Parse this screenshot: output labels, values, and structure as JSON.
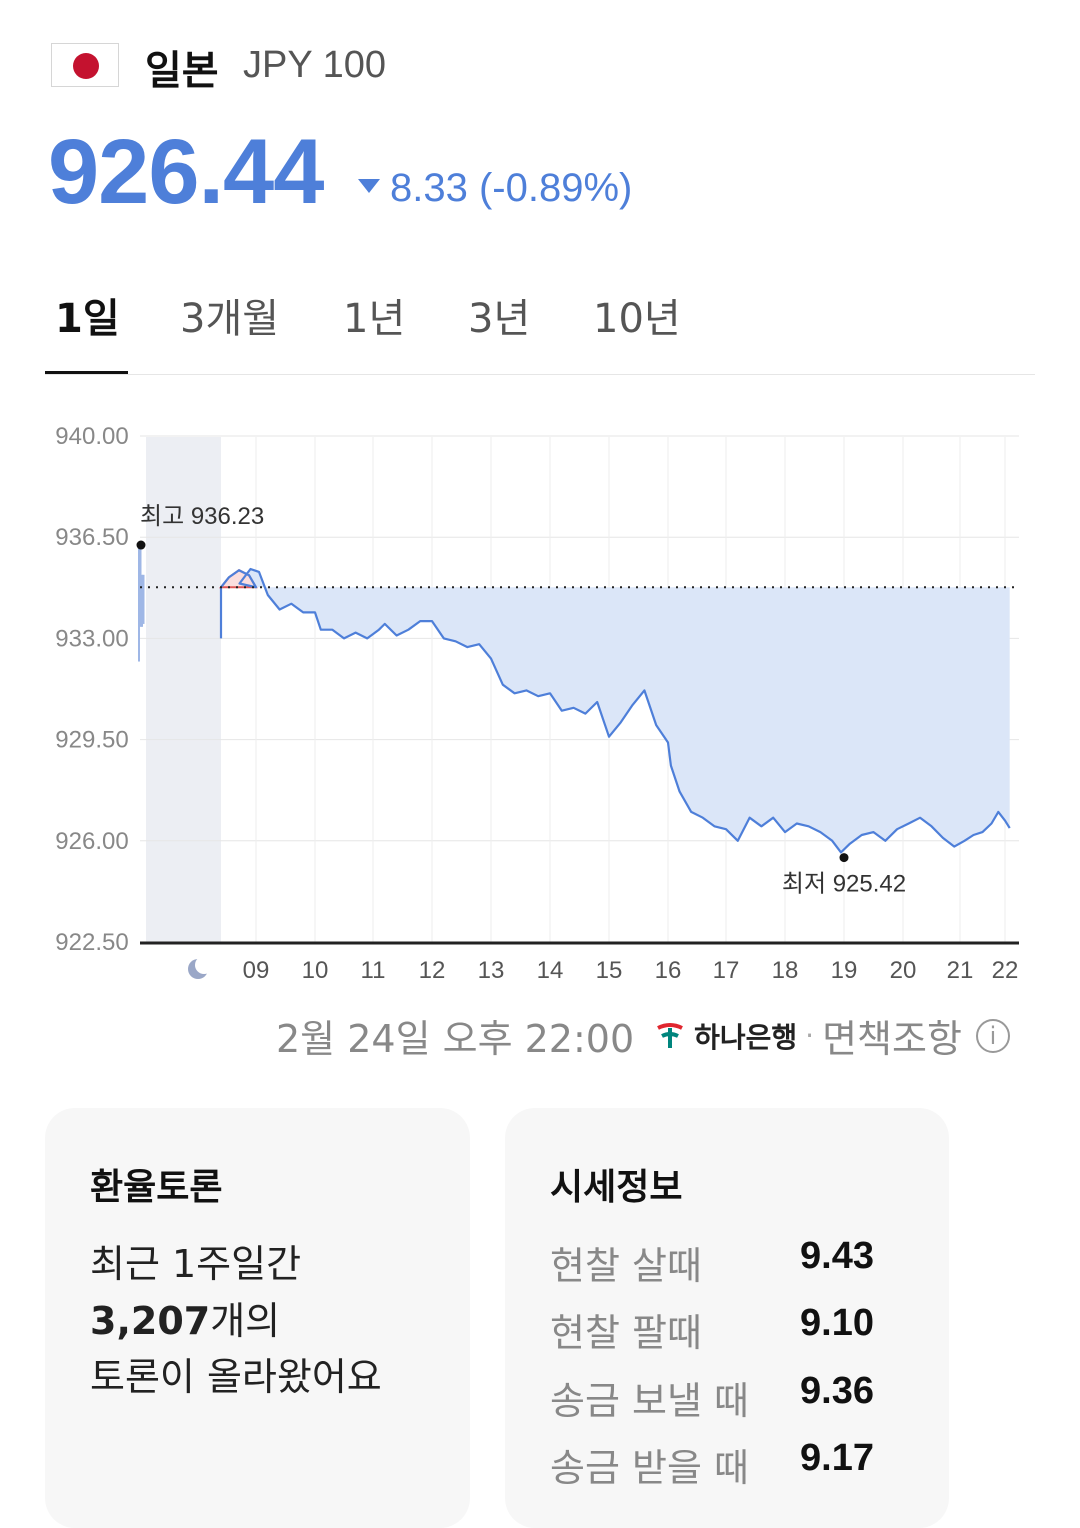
{
  "header": {
    "country": "일본",
    "currency_code": "JPY 100",
    "price": "926.44",
    "change": "8.33 (-0.89%)",
    "change_direction": "down",
    "accent_color": "#4e7fd9",
    "flag_icon": "japan-flag-icon"
  },
  "tabs": [
    {
      "label": "1일",
      "active": true
    },
    {
      "label": "3개월",
      "active": false
    },
    {
      "label": "1년",
      "active": false
    },
    {
      "label": "3년",
      "active": false
    },
    {
      "label": "10년",
      "active": false
    }
  ],
  "chart_data": {
    "type": "area",
    "y_ticks": [
      "940.00",
      "936.50",
      "933.00",
      "929.50",
      "926.00",
      "922.50"
    ],
    "ylim": [
      922.5,
      940.0
    ],
    "x_ticks": [
      "09",
      "10",
      "11",
      "12",
      "13",
      "14",
      "15",
      "16",
      "17",
      "18",
      "19",
      "20",
      "21",
      "22"
    ],
    "night_icon": "moon-icon",
    "previous_close": 934.77,
    "high_label": "최고 936.23",
    "low_label": "최저 925.42",
    "high": 936.23,
    "low": 925.42,
    "grid": true,
    "line_color": "#4e7fd9",
    "fill_color": "#dbe6f8",
    "up_color": "#e05a5a",
    "series": [
      {
        "x": [
          8.85,
          8.95,
          9.05,
          9.2,
          9.4,
          9.6,
          9.8,
          10.0,
          10.1,
          10.3,
          10.5,
          10.7,
          10.9,
          11.1,
          11.2,
          11.4,
          11.6,
          11.8,
          12.0,
          12.2,
          12.4,
          12.6,
          12.8,
          13.0,
          13.2,
          13.4,
          13.6,
          13.8,
          14.0,
          14.2,
          14.4,
          14.6,
          14.8,
          15.0,
          15.2,
          15.4,
          15.6,
          15.8,
          16.0,
          16.05,
          16.2,
          16.4,
          16.6,
          16.8,
          17.0,
          17.2,
          17.4,
          17.6,
          17.8,
          18.0,
          18.2,
          18.4,
          18.6,
          18.8,
          18.95,
          19.1,
          19.3,
          19.5,
          19.7,
          19.9,
          20.1,
          20.3,
          20.5,
          20.7,
          20.9,
          21.1,
          21.3,
          21.5,
          21.7,
          21.85,
          22.0,
          22.1
        ],
        "values": [
          934.9,
          935.4,
          935.3,
          934.5,
          934.0,
          934.2,
          933.9,
          933.9,
          933.3,
          933.3,
          933.0,
          933.2,
          933.0,
          933.3,
          933.5,
          933.1,
          933.3,
          933.6,
          933.6,
          933.0,
          932.9,
          932.7,
          932.8,
          932.3,
          931.4,
          931.1,
          931.2,
          931.0,
          931.1,
          930.5,
          930.6,
          930.4,
          930.8,
          929.6,
          930.1,
          930.7,
          931.2,
          930.0,
          929.4,
          928.6,
          927.7,
          927.0,
          926.8,
          926.5,
          926.4,
          926.0,
          926.8,
          926.5,
          926.8,
          926.3,
          926.6,
          926.5,
          926.3,
          926.0,
          925.6,
          925.9,
          926.2,
          926.3,
          926.0,
          926.4,
          926.6,
          926.8,
          926.5,
          926.1,
          925.8,
          926.0,
          926.2,
          926.3,
          926.6,
          927.0,
          926.7,
          926.44
        ]
      }
    ],
    "overnight": {
      "x": [
        8.0,
        8.02,
        8.04,
        8.06,
        8.08
      ],
      "values": [
        932.2,
        936.2,
        933.4,
        935.2,
        933.5
      ]
    }
  },
  "updated": "2월 24일 오후 22:00",
  "bank": {
    "name": "하나은행",
    "icon": "hana-bank-logo-icon"
  },
  "disclaimer": "면책조항",
  "info_icon": "info-icon",
  "debate": {
    "title": "환율토론",
    "line1": "최근 1주일간",
    "count": "3,207",
    "line2_suffix": "개의",
    "line3": "토론이 올라왔어요"
  },
  "rates": {
    "title": "시세정보",
    "items": [
      {
        "label": "현찰 살때",
        "value": "9.43"
      },
      {
        "label": "현찰 팔때",
        "value": "9.10"
      },
      {
        "label": "송금 보낼 때",
        "value": "9.36"
      },
      {
        "label": "송금 받을 때",
        "value": "9.17"
      }
    ]
  }
}
